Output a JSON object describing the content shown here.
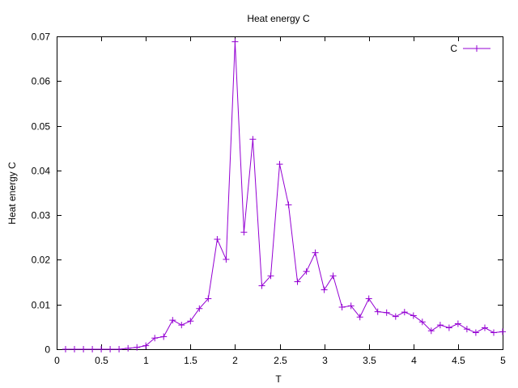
{
  "chart_data": {
    "type": "line",
    "title": "Heat energy C",
    "xlabel": "T",
    "ylabel": "Heat energy C",
    "xlim": [
      0,
      5
    ],
    "ylim": [
      0,
      0.07
    ],
    "xticks": [
      0,
      0.5,
      1,
      1.5,
      2,
      2.5,
      3,
      3.5,
      4,
      4.5,
      5
    ],
    "xtick_labels": [
      "0",
      "0.5",
      "1",
      "1.5",
      "2",
      "2.5",
      "3",
      "3.5",
      "4",
      "4.5",
      "5"
    ],
    "yticks": [
      0,
      0.01,
      0.02,
      0.03,
      0.04,
      0.05,
      0.06,
      0.07
    ],
    "ytick_labels": [
      "0",
      "0.01",
      "0.02",
      "0.03",
      "0.04",
      "0.05",
      "0.06",
      "0.07"
    ],
    "grid": false,
    "legend_position": "top-right",
    "series": [
      {
        "name": "C",
        "color": "#9400d3",
        "marker": "plus",
        "x": [
          0.1,
          0.2,
          0.3,
          0.4,
          0.5,
          0.6,
          0.7,
          0.8,
          0.9,
          1.0,
          1.1,
          1.2,
          1.3,
          1.4,
          1.5,
          1.6,
          1.7,
          1.8,
          1.9,
          2.0,
          2.1,
          2.2,
          2.3,
          2.4,
          2.5,
          2.6,
          2.7,
          2.8,
          2.9,
          3.0,
          3.1,
          3.2,
          3.3,
          3.4,
          3.5,
          3.6,
          3.7,
          3.8,
          3.9,
          4.0,
          4.1,
          4.2,
          4.3,
          4.4,
          4.5,
          4.6,
          4.7,
          4.8,
          4.9,
          5.0
        ],
        "y": [
          0.0,
          0.0,
          0.0,
          0.0,
          0.0,
          0.0,
          0.0,
          0.0002,
          0.0004,
          0.0008,
          0.0025,
          0.0028,
          0.0065,
          0.0054,
          0.0063,
          0.0091,
          0.0113,
          0.0246,
          0.0201,
          0.0688,
          0.0262,
          0.047,
          0.0142,
          0.0164,
          0.0414,
          0.0323,
          0.0151,
          0.0174,
          0.0216,
          0.0133,
          0.0164,
          0.0094,
          0.0097,
          0.0072,
          0.0113,
          0.0084,
          0.0082,
          0.0073,
          0.0083,
          0.0075,
          0.0061,
          0.0041,
          0.0054,
          0.0048,
          0.0057,
          0.0045,
          0.0037,
          0.0048,
          0.0037,
          0.0039
        ]
      }
    ]
  }
}
